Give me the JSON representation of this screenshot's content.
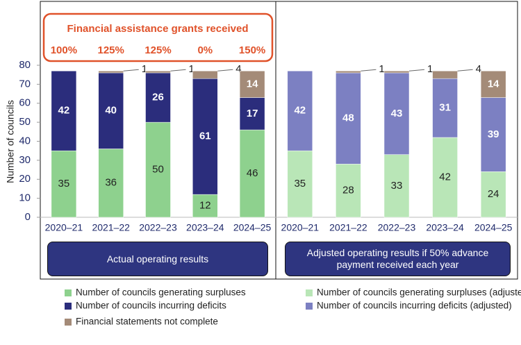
{
  "chart_data": [
    {
      "type": "bar",
      "stacked": true,
      "ylabel": "Number of councils",
      "categories": [
        "2020–21",
        "2021–22",
        "2022–23",
        "2023–24",
        "2024–25"
      ],
      "ylim": [
        0,
        80
      ],
      "yticks": [
        0,
        10,
        20,
        30,
        40,
        50,
        60,
        70,
        80
      ],
      "series": [
        {
          "name": "Number of councils generating surpluses",
          "color": "#8ed18e",
          "values": [
            35,
            36,
            50,
            12,
            46
          ]
        },
        {
          "name": "Number of councils incurring deficits",
          "color": "#2b2d7c",
          "values": [
            42,
            40,
            26,
            61,
            17
          ]
        },
        {
          "name": "Financial statements not complete",
          "color": "#a48b78",
          "values": [
            null,
            1,
            1,
            4,
            14
          ]
        }
      ],
      "annotation": {
        "title": "Financial assistance grants received",
        "labels": [
          "100%",
          "125%",
          "125%",
          "0%",
          "150%"
        ]
      },
      "panel_label": "Actual operating results"
    },
    {
      "type": "bar",
      "stacked": true,
      "categories": [
        "2020–21",
        "2021–22",
        "2022–23",
        "2023–24",
        "2024–25"
      ],
      "ylim": [
        0,
        80
      ],
      "series": [
        {
          "name": "Number of councils generating surpluses (adjusted)",
          "color": "#b9e6b7",
          "values": [
            35,
            28,
            33,
            42,
            24
          ]
        },
        {
          "name": "Number of councils incurring deficits (adjusted)",
          "color": "#7c80c2",
          "values": [
            42,
            48,
            43,
            31,
            39
          ]
        },
        {
          "color": "#a48b78",
          "values": [
            null,
            1,
            1,
            4,
            14
          ]
        }
      ],
      "panel_label": "Adjusted operating results if 50% advance payment received each year"
    }
  ]
}
